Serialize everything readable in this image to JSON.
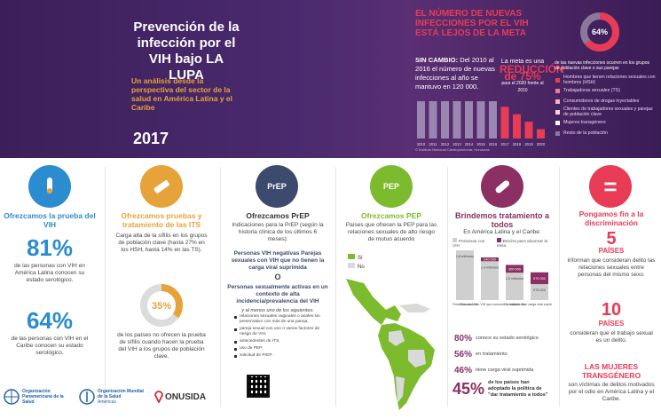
{
  "hero": {
    "title": "Prevención de la infección por el VIH bajo LA LUPA",
    "subtitle": "Un análisis desde la perspectiva del sector de la salud en América Latina y el Caribe",
    "year": "2017"
  },
  "trend": {
    "headline": "EL NÚMERO DE NUEVAS INFECCIONES POR EL VIH ESTÁ LEJOS DE LA META",
    "sin_cambio_label": "SIN CAMBIO:",
    "sin_cambio_text": "Del 2010 al 2016 el número de nuevas infecciones al año se mantuvo en 120 000.",
    "meta_line1": "La meta es una",
    "meta_label": "REDUCCIÓN",
    "meta_pct": "de 75%",
    "meta_detail": "para el 2020 frente al 2010",
    "years": [
      "2010",
      "2011",
      "2012",
      "2013",
      "2014",
      "2015",
      "2016",
      "2017",
      "2018",
      "2019",
      "2020"
    ],
    "bar_values": [
      100,
      100,
      100,
      100,
      100,
      100,
      100,
      85,
      65,
      45,
      25
    ],
    "source": "© Instituto Nacional Cardiopulmonar, Honduras"
  },
  "population": {
    "pct": "64%",
    "note": "de las nuevas infecciones ocurren en los grupos de población clave o sus parejas",
    "legend": [
      {
        "label": "Hombres que tienen relaciones sexuales con hombres (HSH)",
        "color": "#e83b56"
      },
      {
        "label": "Trabajadoras sexuales (TS)",
        "color": "#f07a8e"
      },
      {
        "label": "Consumidores de drogas inyectables",
        "color": "#f7b4c0"
      },
      {
        "label": "Clientes de trabajadores sexuales y parejas de población clave",
        "color": "#fbd6dd"
      },
      {
        "label": "Mujeres transgénero",
        "color": "#ffffff"
      },
      {
        "label": "Resto de la población",
        "color": "#8a7a9a"
      }
    ]
  },
  "col1": {
    "title": "Ofrezcamos la prueba del VIH",
    "pct1": "81%",
    "text1": "de las personas con VIH en América Latina conocen su estado serológico.",
    "pct2": "64%",
    "text2": "de las personas con VIH en el Caribe conocen su estado serológico."
  },
  "col2": {
    "title": "Ofrezcamos pruebas y tratamiento de las ITS",
    "text": "Carga alta de la sífilis en los grupos de población clave (hasta 27% en los HSH, hasta 14% en las TS).",
    "pct": "35%",
    "text2": "de los países no ofrecen la prueba de sífilis cuando hacen la prueba del VIH a los grupos de población clave."
  },
  "col3": {
    "badge": "PrEP",
    "title": "Ofrezcamos PrEP",
    "intro": "Indicaciones para la PrEP (según la historia clínica de los últimos 6 meses):",
    "crit1": "Personas VIH negativas Parejas sexuales con VIH que no tienen la carga viral suprimida",
    "or": "O",
    "crit2": "Personas sexualmente activas en un contexto de alta incidencia/prevalencia del VIH",
    "and": "y al menos uno de los siguientes:",
    "items": [
      "relaciones sexuales vaginales o anales sin preservativo con más de una pareja,",
      "pareja sexual con uno o varios factores de riesgo de VIH,",
      "antecedentes de ITS,",
      "uso de PEP,",
      "solicitud de PrEP."
    ]
  },
  "col4": {
    "badge": "PEP",
    "title": "Ofrezcamos PEP",
    "text": "Países que ofrecen la PEP para las relaciones sexuales de alto riesgo de mutuo acuerdo",
    "legend_si": "Sí",
    "legend_no": "No"
  },
  "col5": {
    "title": "Brindemos tratamiento a todos",
    "region": "En América Latina y el Caribe:",
    "leg1": "Personas con VIH",
    "leg2": "Brecha para alcanzar la meta",
    "bars": [
      {
        "label": "Personas con VIH",
        "value": "1,8 millones",
        "h": 1.0,
        "gap": 0
      },
      {
        "label": "Personas con VIH que conocen su estado",
        "value": "1,4 millones",
        "h": 0.78,
        "gap": "240 000"
      },
      {
        "label": "En tratamiento",
        "value": "1,0 millones",
        "h": 0.55,
        "gap": "300 000"
      },
      {
        "label": "Con carga viral suprimida",
        "value": "575 000",
        "h": 0.32,
        "gap": "575 000"
      }
    ],
    "stats": [
      {
        "pct": "80%",
        "text": "conoce su estado serológico"
      },
      {
        "pct": "56%",
        "text": "en tratamiento"
      },
      {
        "pct": "46%",
        "text": "tiene carga viral suprimida"
      }
    ],
    "big": "45%",
    "big_text": "de los países han adoptado la política de \"dar tratamiento a todos\""
  },
  "col6": {
    "symbol": "=",
    "title": "Pongamos fin a la discriminación",
    "n1": "5",
    "n1_label": "PAÍSES",
    "n1_text": "informan que consideran delito las relaciones sexuales entre personas del mismo sexo.",
    "n2": "10",
    "n2_label": "PAÍSES",
    "n2_text": "consideran que el trabajo sexual es un delito.",
    "h3": "LAS MUJERES TRANSGÉNERO",
    "h3_text": "son víctimas de delitos motivados por el odio en América Latina y el Caribe."
  },
  "orgs": {
    "paho": "Organización Panamericana de la Salud",
    "who": "Organización Mundial de la Salud",
    "who_region": "Américas",
    "unaids": "ONUSIDA"
  }
}
